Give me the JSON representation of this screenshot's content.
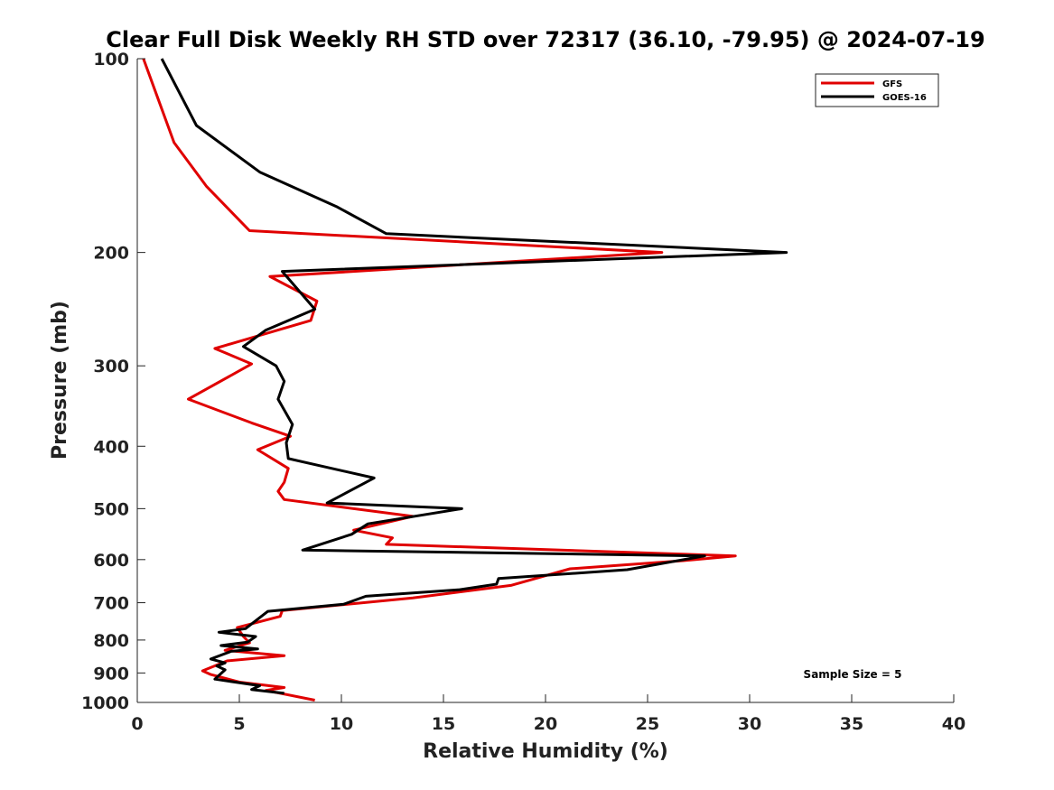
{
  "chart_data": {
    "type": "line",
    "title": "Clear Full Disk Weekly RH STD over 72317 (36.10, -79.95) @ 2024-07-19",
    "xlabel": "Relative Humidity (%)",
    "ylabel": "Pressure (mb)",
    "xlim": [
      0,
      40
    ],
    "ylim": [
      100,
      1000
    ],
    "y_scale": "log",
    "y_reversed": true,
    "x_ticks": [
      0,
      5,
      10,
      15,
      20,
      25,
      30,
      35,
      40
    ],
    "y_ticks": [
      100,
      200,
      300,
      400,
      500,
      600,
      700,
      800,
      900,
      1000
    ],
    "grid": false,
    "legend_position": "top-right",
    "annotation": "Sample Size = 5",
    "series": [
      {
        "name": "GFS",
        "color": "#e00000",
        "points": [
          [
            0.3,
            100
          ],
          [
            1.0,
            115
          ],
          [
            1.8,
            135
          ],
          [
            3.4,
            158
          ],
          [
            5.5,
            185
          ],
          [
            25.7,
            200
          ],
          [
            6.5,
            218
          ],
          [
            8.8,
            238
          ],
          [
            8.5,
            255
          ],
          [
            3.8,
            282
          ],
          [
            5.6,
            298
          ],
          [
            2.5,
            338
          ],
          [
            5.6,
            368
          ],
          [
            7.5,
            386
          ],
          [
            5.9,
            405
          ],
          [
            7.4,
            433
          ],
          [
            7.2,
            455
          ],
          [
            6.9,
            470
          ],
          [
            7.2,
            484
          ],
          [
            13.5,
            514
          ],
          [
            10.6,
            540
          ],
          [
            12.5,
            555
          ],
          [
            12.2,
            568
          ],
          [
            29.3,
            592
          ],
          [
            26.8,
            602
          ],
          [
            21.2,
            620
          ],
          [
            18.3,
            658
          ],
          [
            13.5,
            688
          ],
          [
            7.1,
            720
          ],
          [
            7.0,
            735
          ],
          [
            4.9,
            765
          ],
          [
            5.2,
            790
          ],
          [
            5.5,
            808
          ],
          [
            4.3,
            830
          ],
          [
            7.2,
            846
          ],
          [
            4.4,
            862
          ],
          [
            3.2,
            893
          ],
          [
            3.6,
            905
          ],
          [
            5.0,
            930
          ],
          [
            7.2,
            948
          ],
          [
            6.3,
            958
          ],
          [
            8.7,
            992
          ]
        ]
      },
      {
        "name": "GOES-16",
        "color": "#000000",
        "points": [
          [
            1.2,
            100
          ],
          [
            2.9,
            127
          ],
          [
            6.0,
            150
          ],
          [
            9.8,
            170
          ],
          [
            12.2,
            187
          ],
          [
            31.8,
            200
          ],
          [
            7.1,
            214
          ],
          [
            8.7,
            245
          ],
          [
            6.3,
            264
          ],
          [
            5.2,
            280
          ],
          [
            6.8,
            300
          ],
          [
            7.2,
            317
          ],
          [
            6.9,
            338
          ],
          [
            7.6,
            370
          ],
          [
            7.3,
            395
          ],
          [
            7.4,
            418
          ],
          [
            11.6,
            448
          ],
          [
            9.3,
            490
          ],
          [
            15.9,
            500
          ],
          [
            11.3,
            528
          ],
          [
            10.5,
            548
          ],
          [
            8.1,
            580
          ],
          [
            27.8,
            592
          ],
          [
            24.0,
            622
          ],
          [
            17.7,
            642
          ],
          [
            17.6,
            655
          ],
          [
            15.8,
            668
          ],
          [
            11.2,
            684
          ],
          [
            10.1,
            704
          ],
          [
            6.4,
            722
          ],
          [
            5.3,
            768
          ],
          [
            4.0,
            778
          ],
          [
            5.8,
            790
          ],
          [
            5.4,
            806
          ],
          [
            4.1,
            816
          ],
          [
            5.9,
            826
          ],
          [
            4.6,
            833
          ],
          [
            3.6,
            856
          ],
          [
            4.3,
            868
          ],
          [
            3.9,
            878
          ],
          [
            4.3,
            890
          ],
          [
            3.8,
            920
          ],
          [
            6.0,
            942
          ],
          [
            5.6,
            955
          ],
          [
            7.2,
            968
          ]
        ]
      }
    ]
  }
}
